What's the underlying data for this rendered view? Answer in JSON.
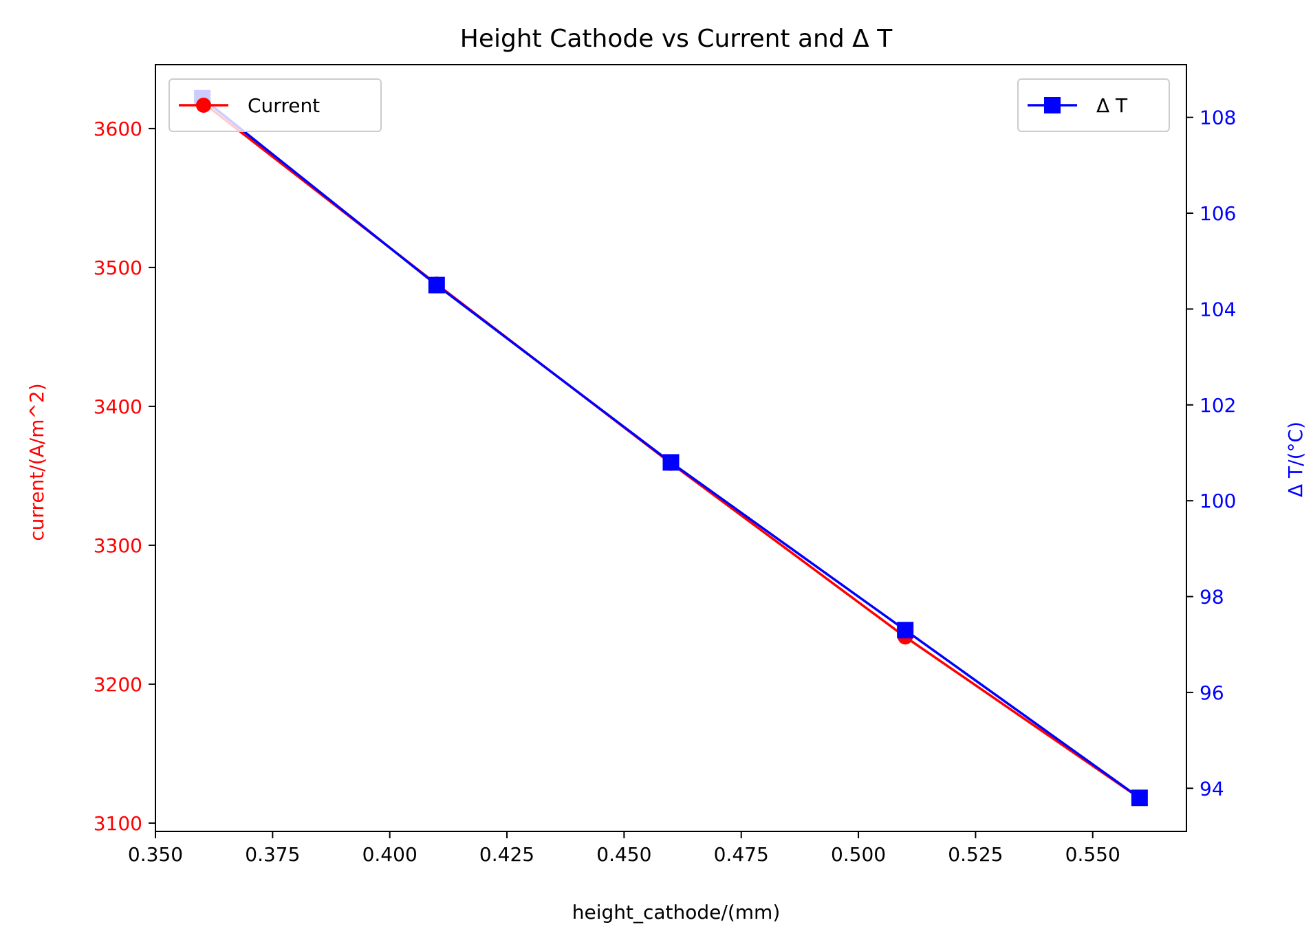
{
  "chart_data": {
    "type": "line",
    "title": "Height Cathode vs Current and Δ T",
    "xlabel": "height_cathode/(mm)",
    "xlim": [
      0.35,
      0.57
    ],
    "xticks": [
      "0.350",
      "0.375",
      "0.400",
      "0.425",
      "0.450",
      "0.475",
      "0.500",
      "0.525",
      "0.550"
    ],
    "x": [
      0.36,
      0.41,
      0.46,
      0.51,
      0.56
    ],
    "left_axis": {
      "label": "current/(A/m^2)",
      "color": "#ff0000",
      "ylim": [
        3094,
        3646
      ],
      "ticks": [
        "3100",
        "3200",
        "3300",
        "3400",
        "3500",
        "3600"
      ]
    },
    "right_axis": {
      "label": "Δ T/(°C)",
      "color": "#0000ff",
      "ylim": [
        93.1,
        109.1
      ],
      "ticks": [
        "94",
        "96",
        "98",
        "100",
        "102",
        "104",
        "106",
        "108"
      ]
    },
    "series": [
      {
        "name": "Current",
        "axis": "left",
        "color": "#ff0000",
        "marker": "circle",
        "values": [
          3619,
          3488,
          3359,
          3234,
          3118
        ]
      },
      {
        "name": "Δ T",
        "axis": "right",
        "color": "#0000ff",
        "marker": "square",
        "values": [
          108.4,
          104.5,
          100.8,
          97.3,
          93.8
        ]
      }
    ],
    "legends": [
      {
        "series": "Current",
        "placement": "upper-left"
      },
      {
        "series": "Δ T",
        "placement": "upper-right"
      }
    ],
    "grid": false
  }
}
